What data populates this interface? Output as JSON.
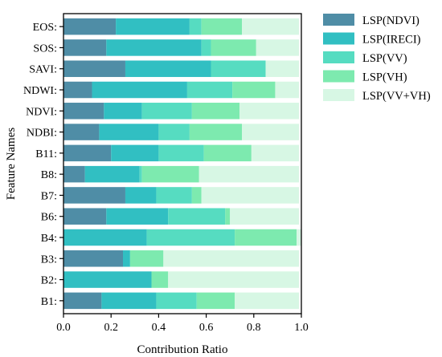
{
  "chart_data": {
    "type": "bar",
    "orientation": "horizontal",
    "stacked": true,
    "title": "",
    "xlabel": "Contribution Ratio",
    "ylabel": "Feature Names",
    "xlim": [
      0.0,
      1.0
    ],
    "x_ticks": [
      "0.0",
      "0.2",
      "0.4",
      "0.6",
      "0.8",
      "1.0"
    ],
    "grid": false,
    "legend_position": "right, outside plot",
    "categories": [
      "EOS:",
      "SOS:",
      "SAVI:",
      "NDWI:",
      "NDVI:",
      "NDBI:",
      "B11:",
      "B8:",
      "B7:",
      "B6:",
      "B4:",
      "B3:",
      "B2:",
      "B1:"
    ],
    "series": [
      {
        "name": "LSP(NDVI)",
        "color": "#4f8da6",
        "values": [
          0.22,
          0.18,
          0.26,
          0.12,
          0.17,
          0.15,
          0.2,
          0.09,
          0.26,
          0.18,
          0.0,
          0.25,
          0.0,
          0.16
        ]
      },
      {
        "name": "LSP(IRECI)",
        "color": "#31bfc2",
        "values": [
          0.31,
          0.4,
          0.36,
          0.4,
          0.16,
          0.25,
          0.2,
          0.23,
          0.13,
          0.26,
          0.35,
          0.03,
          0.37,
          0.23
        ]
      },
      {
        "name": "LSP(VV)",
        "color": "#56dcc1",
        "values": [
          0.05,
          0.04,
          0.23,
          0.19,
          0.21,
          0.13,
          0.19,
          0.01,
          0.15,
          0.24,
          0.37,
          0.0,
          0.0,
          0.17
        ]
      },
      {
        "name": "LSP(VH)",
        "color": "#7deaaf",
        "values": [
          0.17,
          0.19,
          0.0,
          0.18,
          0.2,
          0.22,
          0.2,
          0.24,
          0.04,
          0.02,
          0.26,
          0.14,
          0.07,
          0.16
        ]
      },
      {
        "name": "LSP(VV+VH)",
        "color": "#d7f7e4",
        "values": [
          0.24,
          0.18,
          0.14,
          0.1,
          0.25,
          0.24,
          0.2,
          0.42,
          0.41,
          0.29,
          0.02,
          0.57,
          0.55,
          0.27
        ]
      }
    ]
  }
}
